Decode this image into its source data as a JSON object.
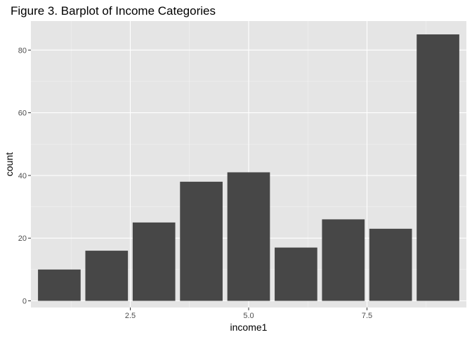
{
  "chart_data": {
    "type": "bar",
    "title": "Figure 3. Barplot of Income Categories",
    "xlabel": "income1",
    "ylabel": "count",
    "x": [
      1,
      2,
      3,
      4,
      5,
      6,
      7,
      8,
      9
    ],
    "values": [
      10,
      16,
      25,
      38,
      41,
      17,
      26,
      23,
      85
    ],
    "xlim": [
      0.4,
      9.6
    ],
    "ylim": [
      -2.125,
      89.25
    ],
    "x_ticks": [
      2.5,
      5.0,
      7.5
    ],
    "x_tick_labels": [
      "2.5",
      "5.0",
      "7.5"
    ],
    "y_ticks": [
      0,
      20,
      40,
      60,
      80
    ],
    "y_tick_labels": [
      "0",
      "20",
      "40",
      "60",
      "80"
    ],
    "grid": true,
    "legend": "none",
    "colors": {
      "bar": "#474747",
      "panel": "#e5e5e5",
      "grid_major": "#ffffff",
      "grid_minor": "#f2f2f2",
      "tick_text": "#4d4d4d"
    }
  }
}
